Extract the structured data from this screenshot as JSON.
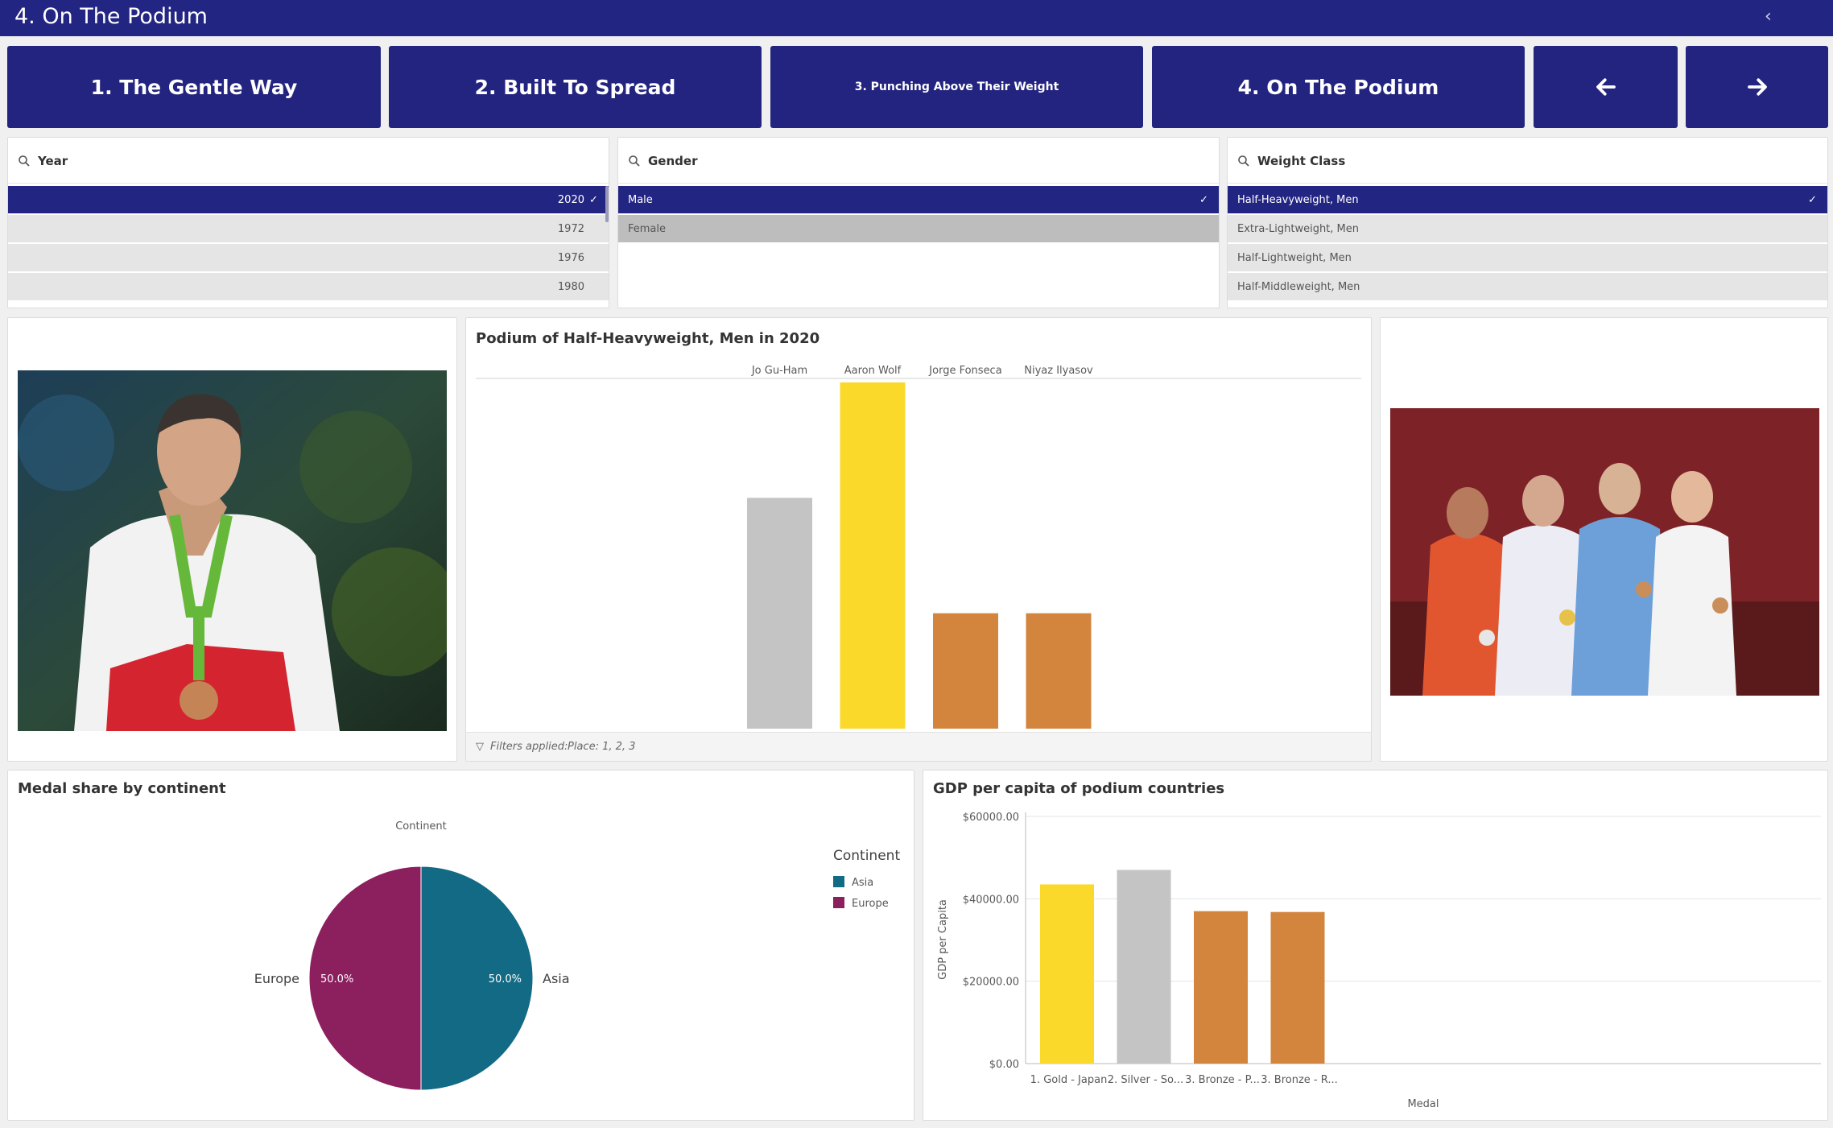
{
  "header": {
    "title": "4. On The Podium",
    "collapse_icon": "chevron-left-icon"
  },
  "nav": {
    "btn1": "1. The Gentle Way",
    "btn2": "2. Built To Spread",
    "btn3": "3. Punching Above Their Weight",
    "btn4": "4. On The Podium",
    "prev_icon": "arrow-left-icon",
    "next_icon": "arrow-right-icon"
  },
  "filters": {
    "year": {
      "label": "Year",
      "items": [
        "2020",
        "1972",
        "1976",
        "1980"
      ],
      "selected": "2020"
    },
    "gender": {
      "label": "Gender",
      "items": [
        "Male",
        "Female"
      ],
      "selected": "Male"
    },
    "weight": {
      "label": "Weight Class",
      "items": [
        "Half-Heavyweight, Men",
        "Extra-Lightweight, Men",
        "Half-Lightweight, Men",
        "Half-Middleweight, Men"
      ],
      "selected": "Half-Heavyweight, Men"
    }
  },
  "colors": {
    "navy": "#232582",
    "gold": "#fad92b",
    "silver": "#c4c4c4",
    "bronze": "#d3853e",
    "asia": "#136a85",
    "europe": "#8c1f5e"
  },
  "podium": {
    "title": "Podium of Half-Heavyweight, Men in 2020",
    "footer_label": "Filters applied:",
    "footer_value": "Place: 1, 2, 3"
  },
  "chart_data": [
    {
      "type": "bar",
      "title": "Podium of Half-Heavyweight, Men in 2020",
      "categories": [
        "Jo Gu-Ham",
        "Aaron Wolf",
        "Jorge Fonseca",
        "Niyaz Ilyasov"
      ],
      "values": [
        2,
        3,
        1,
        1
      ],
      "colors": [
        "#c4c4c4",
        "#fad92b",
        "#d3853e",
        "#d3853e"
      ],
      "ylim": [
        0,
        3
      ]
    },
    {
      "type": "pie",
      "title": "Medal share by continent",
      "subtitle": "Continent",
      "legend_title": "Continent",
      "slices": [
        {
          "label": "Asia",
          "value": 50.0,
          "display": "50.0%",
          "color": "#136a85"
        },
        {
          "label": "Europe",
          "value": 50.0,
          "display": "50.0%",
          "color": "#8c1f5e"
        }
      ],
      "legend": "right"
    },
    {
      "type": "bar",
      "title": "GDP per capita of podium countries",
      "xlabel": "Medal",
      "ylabel": "GDP per Capita",
      "categories": [
        "1. Gold - Japan",
        "2. Silver - So...",
        "3. Bronze - P...",
        "3. Bronze - R..."
      ],
      "values": [
        43500,
        47000,
        37000,
        36800
      ],
      "colors": [
        "#fad92b",
        "#c4c4c4",
        "#d3853e",
        "#d3853e"
      ],
      "ylim": [
        0,
        60000
      ],
      "yticks": [
        "$0.00",
        "$20000.00",
        "$40000.00",
        "$60000.00"
      ],
      "grid": true
    }
  ]
}
